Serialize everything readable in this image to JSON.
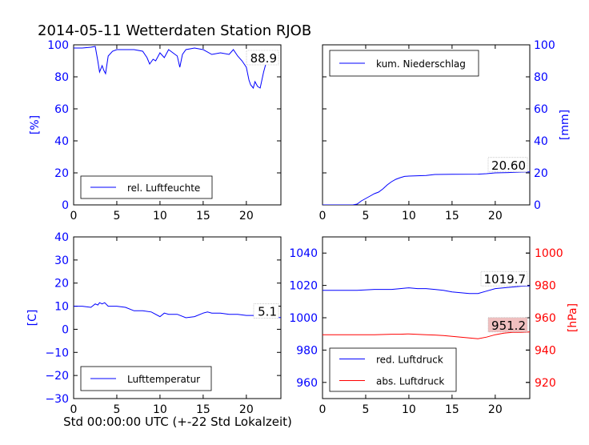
{
  "figure_title": "2014-05-11 Wetterdaten Station RJOB",
  "footer_xlabel": "Std 00:00:00 UTC (+-22 Std Lokalzeit)",
  "colors": {
    "blue": "#0000ff",
    "red": "#ff0000",
    "axis": "#000000",
    "value_box_fill": "#f0c0c0"
  },
  "chart_data": [
    {
      "type": "line",
      "panel": "top-left",
      "ylabel": "[%]",
      "ylabel_color": "blue",
      "xlim": [
        0,
        24
      ],
      "ylim": [
        0,
        100
      ],
      "xticks": [
        0,
        5,
        10,
        15,
        20
      ],
      "yticks": [
        0,
        20,
        40,
        60,
        80,
        100
      ],
      "ytick_color": "blue",
      "legend": "lower-left",
      "current_value": "88.9",
      "series": [
        {
          "name": "rel. Luftfeuchte",
          "color": "blue",
          "x": [
            0,
            1,
            2,
            2.5,
            2.8,
            3.0,
            3.3,
            3.5,
            3.7,
            4.0,
            4.5,
            5,
            6,
            7,
            8,
            8.5,
            8.8,
            9.2,
            9.5,
            10,
            10.5,
            11,
            11.5,
            12,
            12.3,
            12.6,
            13,
            14,
            15,
            16,
            17,
            18,
            18.5,
            19,
            19.5,
            20,
            20.3,
            20.5,
            20.8,
            21,
            21.3,
            21.6,
            22,
            22.5,
            23,
            23.5
          ],
          "y": [
            98,
            98,
            98.5,
            99,
            90,
            83,
            87,
            84,
            82,
            93,
            96,
            97,
            97,
            97,
            96,
            92,
            88,
            91,
            90,
            95,
            92,
            97,
            95,
            93,
            86,
            94,
            97,
            98,
            97,
            94,
            95,
            94,
            97,
            93,
            90,
            86,
            78,
            75,
            73,
            77,
            74,
            73,
            83,
            93,
            95,
            94
          ]
        }
      ]
    },
    {
      "type": "line",
      "panel": "top-right",
      "ylabel": "[mm]",
      "ylabel_color": "blue",
      "y_axis_side": "right",
      "xlim": [
        0,
        24
      ],
      "ylim": [
        0,
        100
      ],
      "xticks": [
        0,
        5,
        10,
        15,
        20
      ],
      "yticks": [
        0,
        20,
        40,
        60,
        80,
        100
      ],
      "ytick_color": "blue",
      "legend": "upper-left",
      "current_value": "20.60",
      "series": [
        {
          "name": "kum. Niederschlag",
          "color": "blue",
          "x": [
            0,
            3.5,
            4,
            4.5,
            5,
            5.5,
            6,
            6.5,
            7,
            7.5,
            8,
            8.5,
            9,
            9.5,
            10,
            11,
            12,
            13,
            15,
            18,
            19,
            20,
            21,
            22,
            23,
            24
          ],
          "y": [
            0,
            0,
            0.5,
            2.5,
            4,
            5.5,
            7,
            8,
            10,
            12.5,
            14.5,
            16,
            17,
            17.8,
            18,
            18.2,
            18.4,
            19,
            19.1,
            19.2,
            19.5,
            20,
            20.1,
            20.3,
            20.5,
            20.6
          ]
        }
      ]
    },
    {
      "type": "line",
      "panel": "bottom-left",
      "ylabel": "[C]",
      "ylabel_color": "blue",
      "xlim": [
        0,
        24
      ],
      "ylim": [
        -30,
        40
      ],
      "xticks": [
        0,
        5,
        10,
        15,
        20
      ],
      "yticks": [
        -30,
        -20,
        -10,
        0,
        10,
        20,
        30,
        40
      ],
      "ytick_color": "blue",
      "legend": "lower-left",
      "current_value": "5.1",
      "series": [
        {
          "name": "Lufttemperatur",
          "color": "blue",
          "x": [
            0,
            1,
            2,
            2.5,
            2.8,
            3.0,
            3.3,
            3.6,
            4,
            5,
            6,
            7,
            8,
            9,
            10,
            10.5,
            11,
            12,
            13,
            14,
            15,
            15.5,
            16,
            17,
            18,
            19,
            20,
            21,
            22,
            23,
            24
          ],
          "y": [
            10,
            10,
            9.5,
            11,
            10.5,
            11.5,
            11,
            11.5,
            10,
            10,
            9.5,
            8,
            8,
            7.5,
            5.5,
            7,
            6.5,
            6.5,
            5,
            5.5,
            7,
            7.5,
            7,
            7,
            6.5,
            6.5,
            6,
            6,
            6,
            5,
            5.1
          ]
        }
      ]
    },
    {
      "type": "line",
      "panel": "bottom-right",
      "ylabel": "[hPa]",
      "ylabel_color": "red",
      "xlim": [
        0,
        24
      ],
      "ylim": [
        950,
        1050
      ],
      "ylim_right": [
        910,
        1010
      ],
      "xticks": [
        0,
        5,
        10,
        15,
        20
      ],
      "yticks": [
        960,
        980,
        1000,
        1020,
        1040
      ],
      "yticks_right": [
        920,
        940,
        960,
        980,
        1000
      ],
      "ytick_color": "blue",
      "ytick_color_right": "red",
      "legend": "lower-left",
      "current_values": [
        "1019.7",
        "951.2"
      ],
      "series": [
        {
          "name": "red. Luftdruck",
          "color": "blue",
          "axis": "left",
          "x": [
            0,
            2,
            4,
            6,
            8,
            9,
            10,
            11,
            12,
            13,
            14,
            15,
            16,
            17,
            18,
            19,
            20,
            21,
            22,
            23,
            24
          ],
          "y": [
            1017,
            1017,
            1017,
            1017.5,
            1017.5,
            1018,
            1018.5,
            1018,
            1018,
            1017.5,
            1017,
            1016,
            1015.5,
            1015,
            1015,
            1016.5,
            1018,
            1018.5,
            1019,
            1019.5,
            1019.7
          ]
        },
        {
          "name": "abs. Luftdruck",
          "color": "red",
          "axis": "right",
          "x": [
            0,
            2,
            4,
            6,
            8,
            9,
            10,
            11,
            12,
            13,
            14,
            15,
            16,
            17,
            18,
            19,
            20,
            21,
            22,
            23,
            24
          ],
          "y": [
            949.5,
            949.5,
            949.5,
            949.5,
            949.8,
            949.8,
            950,
            949.7,
            949.5,
            949.3,
            949,
            948.5,
            948,
            947.5,
            947,
            948,
            949.5,
            950.5,
            951,
            951,
            951.2
          ]
        }
      ]
    }
  ]
}
